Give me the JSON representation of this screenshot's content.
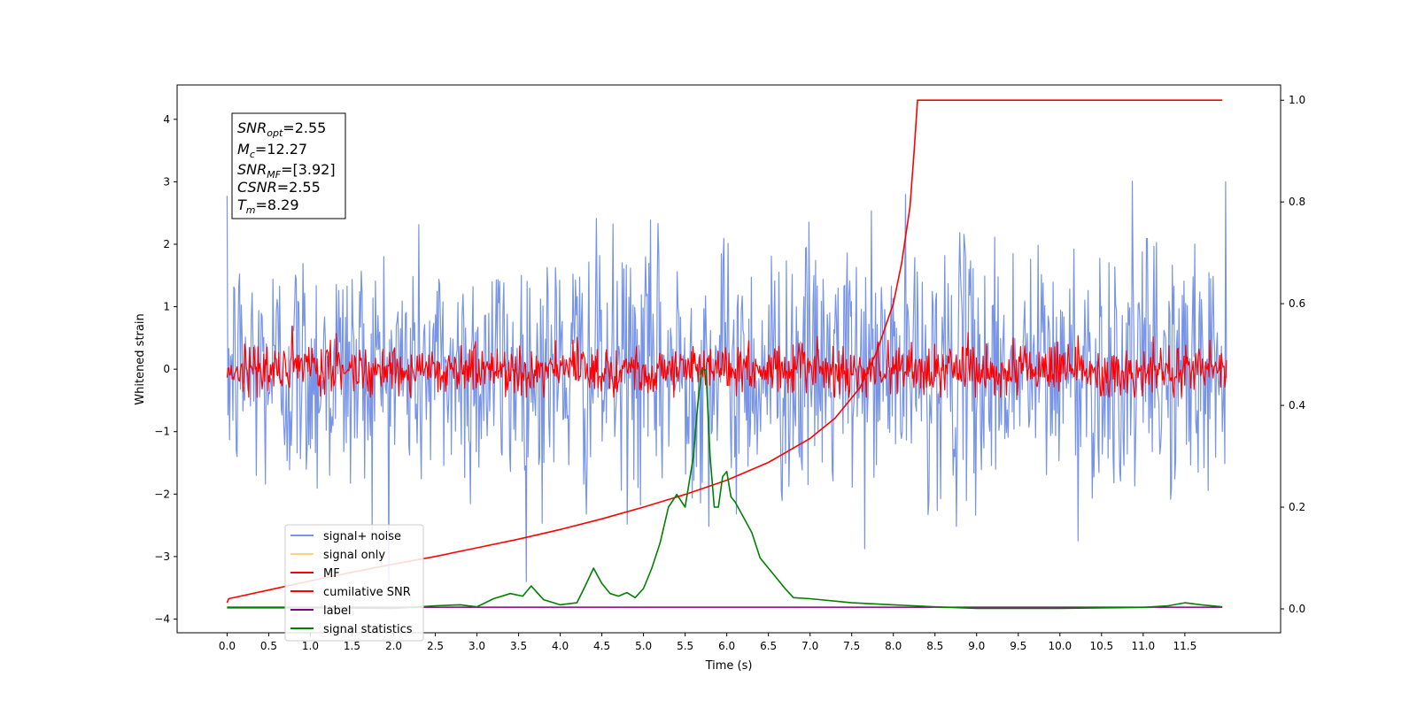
{
  "chart_data": {
    "type": "line",
    "title": "",
    "xlabel": "Time (s)",
    "ylabel": "Whitened strain",
    "y2label": "",
    "xlim": [
      -0.6,
      12.65
    ],
    "ylim": [
      -4.22,
      4.55
    ],
    "y2lim": [
      -0.047,
      1.03
    ],
    "grid": false,
    "legend_position": "bottom-left",
    "x_ticks": [
      "0.0",
      "0.5",
      "1.0",
      "1.5",
      "2.0",
      "2.5",
      "3.0",
      "3.5",
      "4.0",
      "4.5",
      "5.0",
      "5.5",
      "6.0",
      "6.5",
      "7.0",
      "7.5",
      "8.0",
      "8.5",
      "9.0",
      "9.5",
      "10.0",
      "10.5",
      "11.0",
      "11.5"
    ],
    "y_ticks": [
      "4",
      "3",
      "2",
      "1",
      "0",
      "−1",
      "−2",
      "−3",
      "−4"
    ],
    "y2_ticks": [
      "1.0",
      "0.8",
      "0.6",
      "0.4",
      "0.2",
      "0.0"
    ],
    "info_box": {
      "snr_opt": {
        "sym": "SNR",
        "sub": "opt",
        "val": "=2.55"
      },
      "mc": {
        "sym": "M",
        "sub": "c",
        "val": "=12.27"
      },
      "snr_mf": {
        "sym": "SNR",
        "sub": "MF",
        "val": "=[3.92]"
      },
      "csnr": {
        "sym": "CSNR",
        "sub": "",
        "val": "=2.55"
      },
      "tm": {
        "sym": "T",
        "sub": "m",
        "val": "=8.29"
      }
    },
    "legend": {
      "signal_noise": "signal+ noise",
      "signal_only": "signal only",
      "mf": "MF",
      "cumulative_snr": "cumilative SNR",
      "label": "label",
      "signal_statistics": "signal statistics"
    },
    "colors": {
      "signal_noise": "#7794e7",
      "signal_only": "#ffd27f",
      "mf": "#ff0000",
      "cumulative_snr": "#ff0000",
      "label": "#800080",
      "signal_statistics": "#008000"
    },
    "series": [
      {
        "name": "signal+ noise",
        "axis": "left",
        "sampled": true,
        "t_range": [
          0,
          12
        ],
        "n_points": 1200,
        "sigma": 1.0,
        "clip": [
          -3.4,
          4.15
        ]
      },
      {
        "name": "MF",
        "axis": "left",
        "sampled": true,
        "t_range": [
          0,
          12
        ],
        "n_points": 1200,
        "sigma": 0.2,
        "clip": [
          -0.45,
          1.0
        ]
      },
      {
        "name": "label",
        "axis": "left",
        "x": [
          0,
          11.95
        ],
        "y": [
          -3.81,
          -3.81
        ]
      },
      {
        "name": "cumilative SNR",
        "axis": "right",
        "x": [
          0,
          0.02,
          0.5,
          1,
          1.5,
          2,
          2.5,
          3,
          3.5,
          4,
          4.5,
          5,
          5.5,
          6,
          6.5,
          7,
          7.3,
          7.6,
          7.8,
          8.0,
          8.1,
          8.2,
          8.25,
          8.29,
          11.95
        ],
        "y": [
          0.012,
          0.02,
          0.037,
          0.055,
          0.072,
          0.088,
          0.103,
          0.12,
          0.137,
          0.156,
          0.177,
          0.2,
          0.225,
          0.253,
          0.288,
          0.335,
          0.375,
          0.435,
          0.505,
          0.6,
          0.68,
          0.79,
          0.9,
          1.0,
          1.0
        ]
      },
      {
        "name": "signal statistics",
        "axis": "right",
        "x": [
          0,
          1,
          2,
          2.5,
          2.8,
          3.0,
          3.2,
          3.4,
          3.55,
          3.65,
          3.8,
          4.0,
          4.2,
          4.3,
          4.4,
          4.5,
          4.6,
          4.7,
          4.8,
          4.9,
          5.0,
          5.1,
          5.2,
          5.3,
          5.4,
          5.5,
          5.6,
          5.65,
          5.7,
          5.75,
          5.8,
          5.85,
          5.9,
          5.95,
          6.0,
          6.05,
          6.1,
          6.2,
          6.3,
          6.4,
          6.5,
          6.6,
          6.7,
          6.8,
          7.0,
          7.5,
          8.0,
          8.5,
          9.0,
          10.0,
          11.0,
          11.3,
          11.5,
          11.7,
          11.95
        ],
        "y": [
          0.002,
          0.002,
          0.001,
          0.006,
          0.008,
          0.004,
          0.02,
          0.03,
          0.025,
          0.045,
          0.018,
          0.008,
          0.012,
          0.045,
          0.08,
          0.05,
          0.03,
          0.025,
          0.032,
          0.022,
          0.04,
          0.08,
          0.13,
          0.2,
          0.225,
          0.2,
          0.3,
          0.4,
          0.47,
          0.47,
          0.3,
          0.2,
          0.2,
          0.26,
          0.27,
          0.22,
          0.21,
          0.18,
          0.15,
          0.1,
          0.08,
          0.06,
          0.04,
          0.022,
          0.02,
          0.012,
          0.008,
          0.004,
          0.001,
          0.001,
          0.003,
          0.006,
          0.012,
          0.008,
          0.004
        ]
      }
    ]
  }
}
